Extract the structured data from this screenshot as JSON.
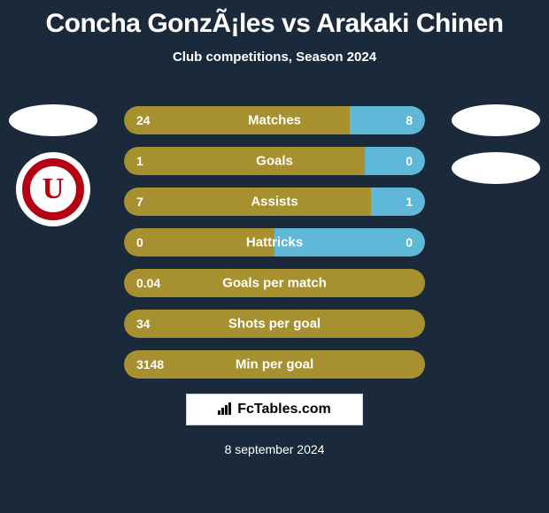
{
  "title": "Concha GonzÃ¡les vs Arakaki Chinen",
  "subtitle": "Club competitions, Season 2024",
  "colors": {
    "background": "#1b2a3a",
    "left_bar": "#a6902f",
    "right_bar": "#5fb8d8",
    "text": "#ffffff",
    "logo_red": "#b30013"
  },
  "stats": [
    {
      "label": "Matches",
      "left_val": "24",
      "right_val": "8",
      "left_pct": 75,
      "right_pct": 25
    },
    {
      "label": "Goals",
      "left_val": "1",
      "right_val": "0",
      "left_pct": 80,
      "right_pct": 20
    },
    {
      "label": "Assists",
      "left_val": "7",
      "right_val": "1",
      "left_pct": 82,
      "right_pct": 18
    },
    {
      "label": "Hattricks",
      "left_val": "0",
      "right_val": "0",
      "left_pct": 50,
      "right_pct": 50
    },
    {
      "label": "Goals per match",
      "left_val": "0.04",
      "right_val": "",
      "left_pct": 100,
      "right_pct": 0
    },
    {
      "label": "Shots per goal",
      "left_val": "34",
      "right_val": "",
      "left_pct": 100,
      "right_pct": 0
    },
    {
      "label": "Min per goal",
      "left_val": "3148",
      "right_val": "",
      "left_pct": 100,
      "right_pct": 0
    }
  ],
  "left_logo_letter": "U",
  "footer_brand": "FcTables.com",
  "footer_date": "8 september 2024"
}
